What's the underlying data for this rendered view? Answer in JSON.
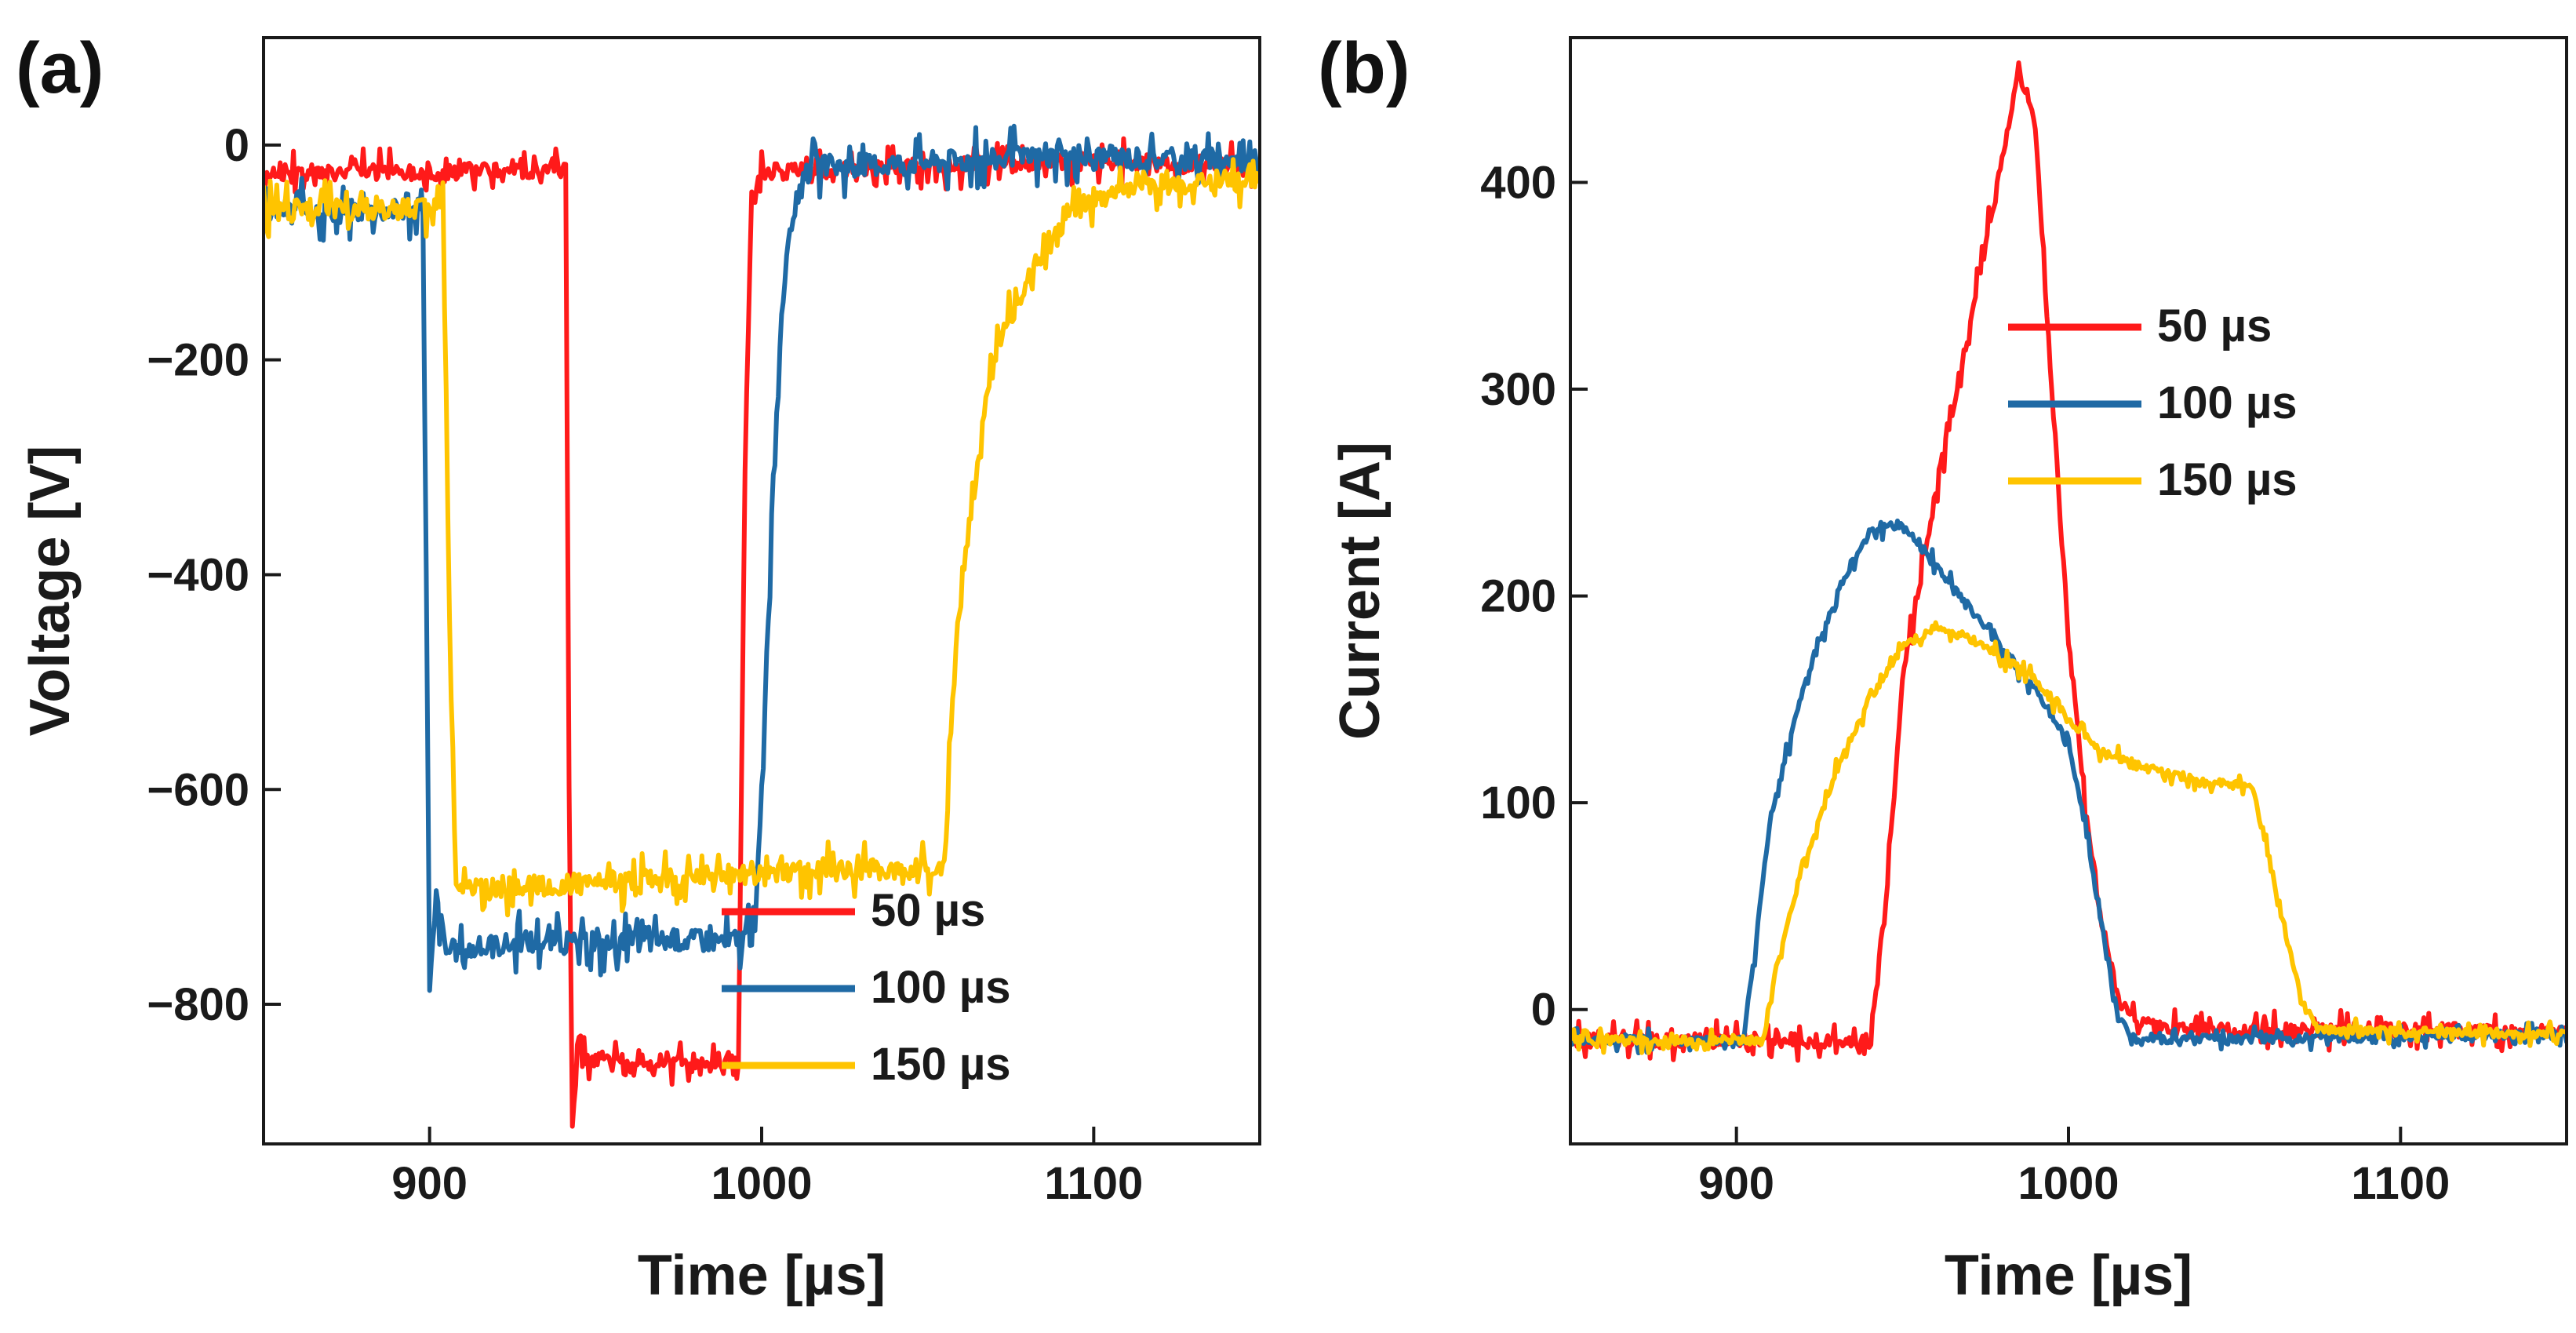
{
  "panels": {
    "a": {
      "letter": "(a)",
      "xlabel": "Time [µs]",
      "ylabel": "Voltage [V]"
    },
    "b": {
      "letter": "(b)",
      "xlabel": "Time [µs]",
      "ylabel": "Current [A]"
    }
  },
  "legend": [
    {
      "label": "50 µs",
      "color": "#ff1a1a"
    },
    {
      "label": "100 µs",
      "color": "#1f6aa5"
    },
    {
      "label": "150 µs",
      "color": "#ffc400"
    }
  ],
  "chart_data": [
    {
      "type": "line",
      "panel": "a",
      "title": "",
      "xlabel": "Time [µs]",
      "ylabel": "Voltage [V]",
      "xlim": [
        850,
        1150
      ],
      "ylim": [
        -930,
        100
      ],
      "xticks": [
        900,
        1000,
        1100
      ],
      "xtick_labels": [
        "900",
        "1000",
        "1100"
      ],
      "yticks": [
        0,
        -200,
        -400,
        -600,
        -800
      ],
      "ytick_labels": [
        "0",
        "−200",
        "−400",
        "−600",
        "−800"
      ],
      "legend_position": "bottom-right",
      "series": [
        {
          "name": "50 µs",
          "color": "#ff1a1a",
          "x": [
            850,
            941,
            942,
            943,
            945,
            948,
            950,
            960,
            970,
            980,
            990,
            993,
            995,
            997,
            1000,
            1050,
            1100,
            1150
          ],
          "y": [
            -25,
            -25,
            -600,
            -920,
            -830,
            -860,
            -850,
            -860,
            -850,
            -860,
            -850,
            -860,
            -300,
            -40,
            -25,
            -20,
            -15,
            -20
          ],
          "noise": 22
        },
        {
          "name": "100 µs",
          "color": "#1f6aa5",
          "x": [
            850,
            898,
            899,
            900,
            902,
            905,
            910,
            930,
            950,
            970,
            990,
            998,
            1000,
            1003,
            1006,
            1010,
            1015,
            1050,
            1100,
            1150
          ],
          "y": [
            -60,
            -60,
            -400,
            -790,
            -700,
            -750,
            -750,
            -740,
            -745,
            -740,
            -740,
            -735,
            -600,
            -350,
            -150,
            -50,
            -20,
            -15,
            -10,
            -15
          ],
          "noise": 30
        },
        {
          "name": "150 µs",
          "color": "#ffc400",
          "x": [
            850,
            904,
            906,
            908,
            910,
            930,
            960,
            990,
            1020,
            1040,
            1055,
            1057,
            1059,
            1062,
            1066,
            1070,
            1080,
            1095,
            1110,
            1150
          ],
          "y": [
            -60,
            -60,
            -450,
            -680,
            -690,
            -690,
            -685,
            -680,
            -675,
            -675,
            -672,
            -550,
            -450,
            -370,
            -270,
            -200,
            -120,
            -60,
            -40,
            -30
          ],
          "noise": 28
        }
      ]
    },
    {
      "type": "line",
      "panel": "b",
      "title": "",
      "xlabel": "Time [µs]",
      "ylabel": "Current [A]",
      "xlim": [
        850,
        1150
      ],
      "ylim": [
        -65,
        470
      ],
      "xticks": [
        900,
        1000,
        1100
      ],
      "xtick_labels": [
        "900",
        "1000",
        "1100"
      ],
      "yticks": [
        0,
        100,
        200,
        300,
        400
      ],
      "ytick_labels": [
        "0",
        "100",
        "200",
        "300",
        "400"
      ],
      "legend_position": "top-right",
      "series": [
        {
          "name": "50 µs",
          "color": "#ff1a1a",
          "x": [
            850,
            940,
            945,
            950,
            960,
            970,
            980,
            985,
            990,
            995,
            1000,
            1005,
            1010,
            1015,
            1020,
            1030,
            1150
          ],
          "y": [
            -15,
            -15,
            50,
            160,
            250,
            330,
            410,
            455,
            430,
            300,
            180,
            100,
            40,
            5,
            -5,
            -10,
            -10
          ],
          "noise": 10
        },
        {
          "name": "100 µs",
          "color": "#1f6aa5",
          "x": [
            850,
            902,
            905,
            910,
            920,
            930,
            940,
            950,
            960,
            970,
            980,
            990,
            1000,
            1005,
            1010,
            1015,
            1020,
            1150
          ],
          "y": [
            -15,
            -15,
            20,
            90,
            155,
            200,
            232,
            235,
            215,
            195,
            175,
            155,
            130,
            90,
            40,
            -5,
            -15,
            -12
          ],
          "noise": 6
        },
        {
          "name": "150 µs",
          "color": "#ffc400",
          "x": [
            850,
            908,
            912,
            920,
            930,
            940,
            950,
            960,
            970,
            980,
            990,
            1000,
            1010,
            1020,
            1040,
            1055,
            1058,
            1065,
            1070,
            1075,
            1150
          ],
          "y": [
            -15,
            -15,
            20,
            70,
            115,
            150,
            175,
            185,
            180,
            170,
            160,
            140,
            125,
            118,
            110,
            108,
            90,
            40,
            5,
            -10,
            -12
          ],
          "noise": 6
        }
      ]
    }
  ]
}
